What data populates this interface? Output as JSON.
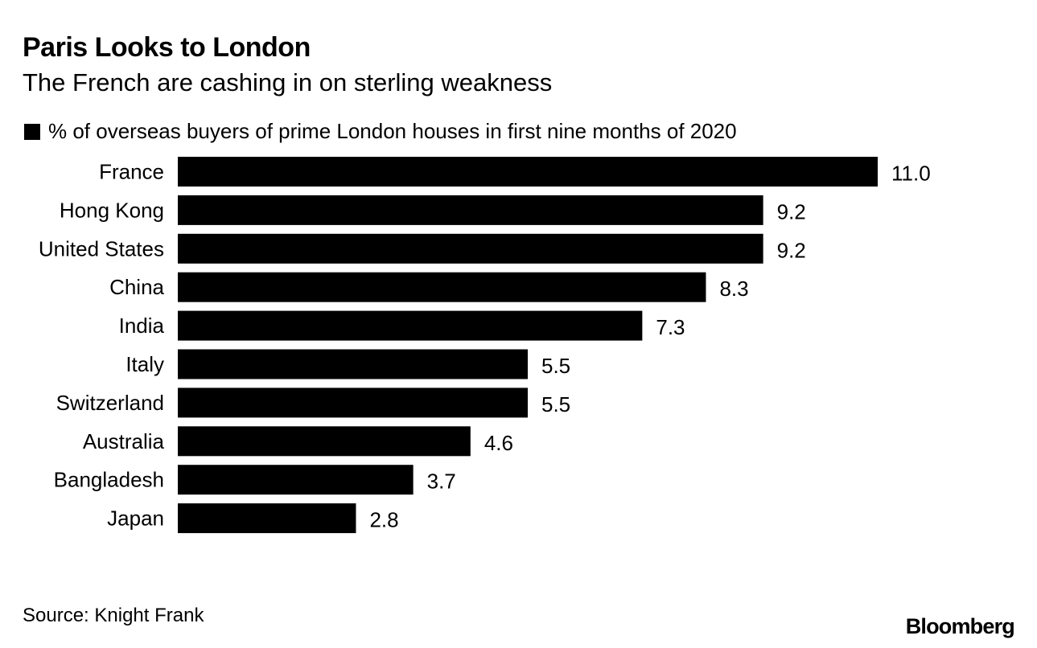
{
  "header": {
    "title": "Paris Looks to London",
    "subtitle": "The French are cashing in on sterling weakness"
  },
  "legend": {
    "label": "% of overseas buyers of prime London houses in first nine months of 2020"
  },
  "footer": {
    "source": "Source: Knight Frank",
    "brand": "Bloomberg"
  },
  "colors": {
    "bar": "#000000",
    "text": "#000000",
    "background": "#ffffff"
  },
  "chart_data": {
    "type": "bar",
    "orientation": "horizontal",
    "title": "Paris Looks to London",
    "subtitle": "The French are cashing in on sterling weakness",
    "xlabel": "",
    "ylabel": "",
    "xlim": [
      0,
      11
    ],
    "grid": false,
    "legend_position": "top-left",
    "categories": [
      "France",
      "Hong Kong",
      "United States",
      "China",
      "India",
      "Italy",
      "Switzerland",
      "Australia",
      "Bangladesh",
      "Japan"
    ],
    "series": [
      {
        "name": "% of overseas buyers of prime London houses in first nine months of 2020",
        "values": [
          11.0,
          9.2,
          9.2,
          8.3,
          7.3,
          5.5,
          5.5,
          4.6,
          3.7,
          2.8
        ],
        "labels": [
          "11.0",
          "9.2",
          "9.2",
          "8.3",
          "7.3",
          "5.5",
          "5.5",
          "4.6",
          "3.7",
          "2.8"
        ]
      }
    ]
  }
}
